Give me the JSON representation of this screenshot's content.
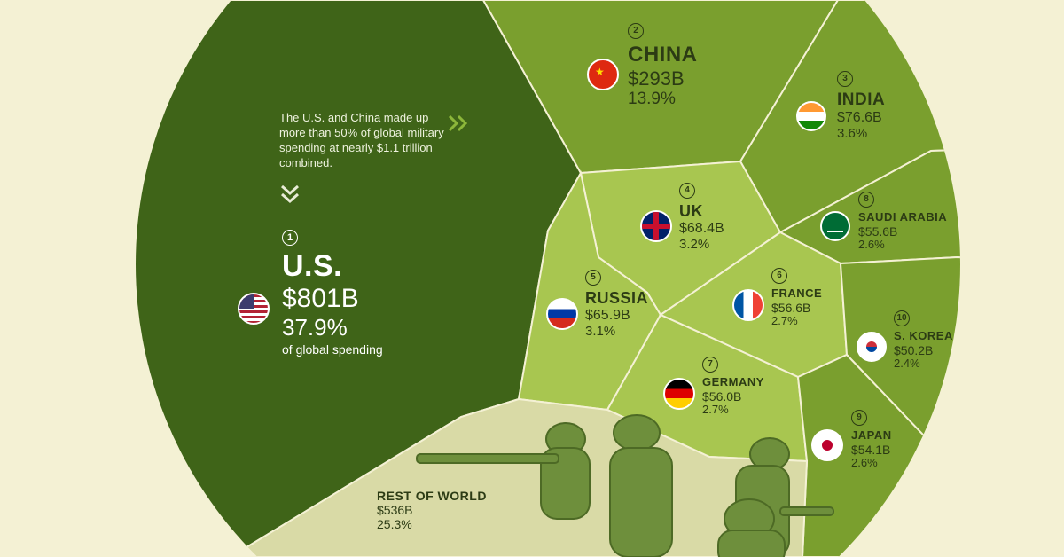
{
  "annotation": "The U.S. and China made up more than 50% of global military spending at nearly $1.1 trillion combined.",
  "colors": {
    "background": "#f4f1d4",
    "us": "#3f6418",
    "tier2": "#7a9f2e",
    "tier3": "#a8c650",
    "rest": "#d9daa6"
  },
  "icons": {
    "note_arrow": "double-chevron-right-icon",
    "down_arrow": "double-chevron-down-icon"
  },
  "chart_data": {
    "type": "voronoi-treemap",
    "unit": "USD billions",
    "entries": [
      {
        "rank": "1",
        "country": "U.S.",
        "value_label": "$801B",
        "value": 801,
        "share_label": "37.9%",
        "share": 37.9,
        "extra": "of global spending"
      },
      {
        "rank": "2",
        "country": "CHINA",
        "value_label": "$293B",
        "value": 293,
        "share_label": "13.9%",
        "share": 13.9
      },
      {
        "rank": "3",
        "country": "INDIA",
        "value_label": "$76.6B",
        "value": 76.6,
        "share_label": "3.6%",
        "share": 3.6
      },
      {
        "rank": "4",
        "country": "UK",
        "value_label": "$68.4B",
        "value": 68.4,
        "share_label": "3.2%",
        "share": 3.2
      },
      {
        "rank": "5",
        "country": "RUSSIA",
        "value_label": "$65.9B",
        "value": 65.9,
        "share_label": "3.1%",
        "share": 3.1
      },
      {
        "rank": "6",
        "country": "FRANCE",
        "value_label": "$56.6B",
        "value": 56.6,
        "share_label": "2.7%",
        "share": 2.7
      },
      {
        "rank": "7",
        "country": "GERMANY",
        "value_label": "$56.0B",
        "value": 56.0,
        "share_label": "2.7%",
        "share": 2.7
      },
      {
        "rank": "8",
        "country": "SAUDI ARABIA",
        "value_label": "$55.6B",
        "value": 55.6,
        "share_label": "2.6%",
        "share": 2.6
      },
      {
        "rank": "9",
        "country": "JAPAN",
        "value_label": "$54.1B",
        "value": 54.1,
        "share_label": "2.6%",
        "share": 2.6
      },
      {
        "rank": "10",
        "country": "S. KOREA",
        "value_label": "$50.2B",
        "value": 50.2,
        "share_label": "2.4%",
        "share": 2.4
      },
      {
        "rank": "",
        "country": "REST OF WORLD",
        "value_label": "$536B",
        "value": 536,
        "share_label": "25.3%",
        "share": 25.3
      }
    ]
  }
}
